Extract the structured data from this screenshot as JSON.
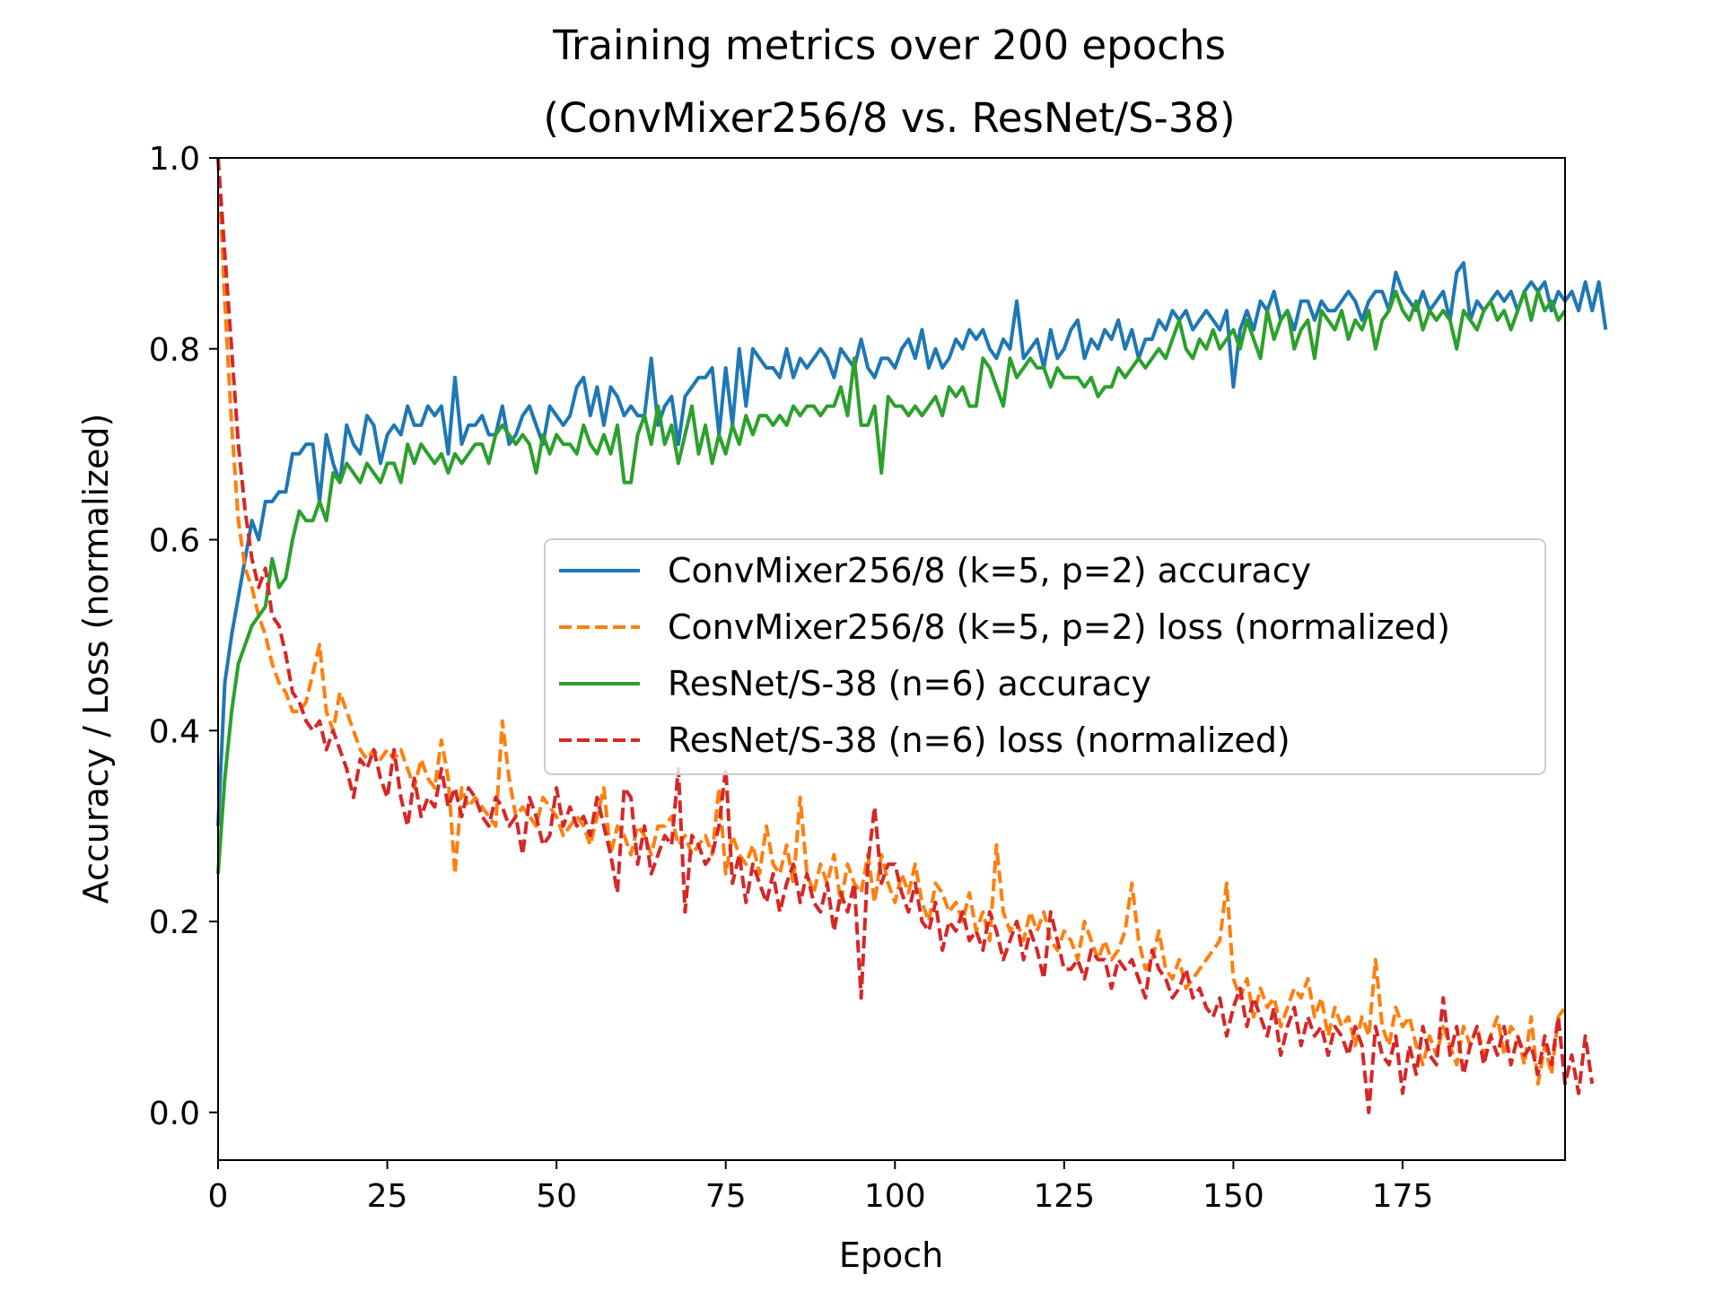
{
  "chart_data": {
    "type": "line",
    "title": "Training metrics over 200 epochs",
    "subtitle": "(ConvMixer256/8 vs. ResNet/S-38)",
    "xlabel": "Epoch",
    "ylabel": "Accuracy / Loss (normalized)",
    "xlim": [
      0,
      199
    ],
    "ylim": [
      -0.05,
      1.0
    ],
    "xticks": [
      0,
      25,
      50,
      75,
      100,
      125,
      150,
      175
    ],
    "yticks": [
      0.0,
      0.2,
      0.4,
      0.6,
      0.8,
      1.0
    ],
    "xtick_labels": [
      "0",
      "25",
      "50",
      "75",
      "100",
      "125",
      "150",
      "175"
    ],
    "ytick_labels": [
      "0.0",
      "0.2",
      "0.4",
      "0.6",
      "0.8",
      "1.0"
    ],
    "grid": false,
    "legend_position": "center-right",
    "x_values": "epochs 0..199 (one point per epoch)",
    "series": [
      {
        "name": "ConvMixer256/8 (k=5, p=2) accuracy",
        "color": "#1f77b4",
        "style": "solid",
        "values": [
          0.3,
          0.45,
          0.5,
          0.54,
          0.58,
          0.62,
          0.6,
          0.64,
          0.64,
          0.65,
          0.65,
          0.69,
          0.69,
          0.7,
          0.7,
          0.64,
          0.71,
          0.68,
          0.66,
          0.72,
          0.7,
          0.69,
          0.73,
          0.72,
          0.68,
          0.71,
          0.72,
          0.71,
          0.74,
          0.72,
          0.72,
          0.74,
          0.73,
          0.74,
          0.69,
          0.77,
          0.7,
          0.72,
          0.72,
          0.73,
          0.71,
          0.71,
          0.74,
          0.7,
          0.71,
          0.73,
          0.74,
          0.72,
          0.7,
          0.74,
          0.73,
          0.72,
          0.73,
          0.76,
          0.77,
          0.73,
          0.76,
          0.72,
          0.76,
          0.75,
          0.73,
          0.74,
          0.73,
          0.73,
          0.79,
          0.72,
          0.74,
          0.75,
          0.7,
          0.75,
          0.76,
          0.77,
          0.77,
          0.78,
          0.71,
          0.78,
          0.72,
          0.8,
          0.74,
          0.8,
          0.79,
          0.78,
          0.78,
          0.77,
          0.8,
          0.77,
          0.79,
          0.78,
          0.79,
          0.8,
          0.79,
          0.77,
          0.8,
          0.79,
          0.78,
          0.81,
          0.78,
          0.77,
          0.79,
          0.79,
          0.78,
          0.8,
          0.81,
          0.79,
          0.82,
          0.78,
          0.8,
          0.78,
          0.79,
          0.81,
          0.8,
          0.82,
          0.81,
          0.82,
          0.8,
          0.79,
          0.81,
          0.8,
          0.85,
          0.79,
          0.8,
          0.81,
          0.78,
          0.82,
          0.79,
          0.8,
          0.82,
          0.83,
          0.79,
          0.81,
          0.8,
          0.82,
          0.81,
          0.83,
          0.8,
          0.82,
          0.79,
          0.81,
          0.81,
          0.83,
          0.82,
          0.84,
          0.83,
          0.84,
          0.82,
          0.83,
          0.84,
          0.83,
          0.82,
          0.84,
          0.76,
          0.82,
          0.84,
          0.82,
          0.85,
          0.84,
          0.86,
          0.83,
          0.84,
          0.82,
          0.85,
          0.85,
          0.83,
          0.85,
          0.84,
          0.84,
          0.85,
          0.86,
          0.85,
          0.83,
          0.85,
          0.86,
          0.86,
          0.84,
          0.88,
          0.86,
          0.85,
          0.84,
          0.86,
          0.84,
          0.85,
          0.86,
          0.83,
          0.88,
          0.89,
          0.83,
          0.85,
          0.84,
          0.85,
          0.86,
          0.85,
          0.86,
          0.84,
          0.86,
          0.87,
          0.86,
          0.87,
          0.84,
          0.86,
          0.85,
          0.86,
          0.84,
          0.87,
          0.84,
          0.87,
          0.82
        ]
      },
      {
        "name": "ConvMixer256/8 (k=5, p=2) loss (normalized)",
        "color": "#ff7f0e",
        "style": "dashed",
        "values": [
          1.0,
          0.85,
          0.72,
          0.62,
          0.57,
          0.55,
          0.52,
          0.5,
          0.47,
          0.45,
          0.44,
          0.42,
          0.42,
          0.43,
          0.46,
          0.49,
          0.42,
          0.4,
          0.44,
          0.42,
          0.4,
          0.38,
          0.37,
          0.38,
          0.37,
          0.38,
          0.37,
          0.38,
          0.36,
          0.34,
          0.37,
          0.35,
          0.34,
          0.39,
          0.35,
          0.25,
          0.34,
          0.32,
          0.33,
          0.32,
          0.31,
          0.3,
          0.41,
          0.35,
          0.31,
          0.32,
          0.31,
          0.3,
          0.33,
          0.32,
          0.31,
          0.29,
          0.3,
          0.31,
          0.3,
          0.28,
          0.31,
          0.34,
          0.27,
          0.3,
          0.29,
          0.27,
          0.3,
          0.29,
          0.27,
          0.3,
          0.3,
          0.31,
          0.28,
          0.29,
          0.27,
          0.28,
          0.29,
          0.27,
          0.34,
          0.25,
          0.29,
          0.27,
          0.26,
          0.28,
          0.25,
          0.3,
          0.26,
          0.25,
          0.28,
          0.24,
          0.33,
          0.25,
          0.23,
          0.26,
          0.24,
          0.27,
          0.22,
          0.26,
          0.24,
          0.23,
          0.27,
          0.22,
          0.27,
          0.24,
          0.22,
          0.25,
          0.23,
          0.26,
          0.22,
          0.2,
          0.24,
          0.23,
          0.21,
          0.22,
          0.2,
          0.23,
          0.19,
          0.21,
          0.18,
          0.28,
          0.21,
          0.19,
          0.2,
          0.18,
          0.21,
          0.19,
          0.21,
          0.18,
          0.17,
          0.19,
          0.18,
          0.16,
          0.2,
          0.18,
          0.16,
          0.18,
          0.16,
          0.17,
          0.19,
          0.24,
          0.18,
          0.15,
          0.16,
          0.19,
          0.15,
          0.14,
          0.16,
          0.13,
          0.14,
          0.15,
          0.16,
          0.17,
          0.18,
          0.24,
          0.14,
          0.12,
          0.14,
          0.1,
          0.13,
          0.11,
          0.12,
          0.09,
          0.11,
          0.13,
          0.12,
          0.14,
          0.1,
          0.12,
          0.08,
          0.11,
          0.09,
          0.1,
          0.07,
          0.1,
          0.08,
          0.16,
          0.09,
          0.07,
          0.11,
          0.09,
          0.1,
          0.07,
          0.05,
          0.08,
          0.06,
          0.09,
          0.07,
          0.05,
          0.09,
          0.07,
          0.09,
          0.06,
          0.08,
          0.1,
          0.06,
          0.09,
          0.08,
          0.05,
          0.1,
          0.03,
          0.07,
          0.04,
          0.1,
          0.11
        ]
      },
      {
        "name": "ResNet/S-38 (n=6) accuracy",
        "color": "#2ca02c",
        "style": "solid",
        "values": [
          0.25,
          0.35,
          0.42,
          0.47,
          0.49,
          0.51,
          0.52,
          0.53,
          0.58,
          0.55,
          0.56,
          0.6,
          0.63,
          0.62,
          0.62,
          0.64,
          0.62,
          0.67,
          0.66,
          0.68,
          0.67,
          0.66,
          0.68,
          0.67,
          0.66,
          0.68,
          0.68,
          0.66,
          0.7,
          0.68,
          0.7,
          0.69,
          0.68,
          0.69,
          0.67,
          0.69,
          0.68,
          0.69,
          0.7,
          0.7,
          0.68,
          0.71,
          0.72,
          0.71,
          0.7,
          0.71,
          0.7,
          0.67,
          0.71,
          0.69,
          0.71,
          0.7,
          0.7,
          0.69,
          0.72,
          0.7,
          0.69,
          0.71,
          0.69,
          0.72,
          0.66,
          0.66,
          0.71,
          0.73,
          0.7,
          0.74,
          0.7,
          0.72,
          0.68,
          0.71,
          0.74,
          0.69,
          0.72,
          0.68,
          0.71,
          0.69,
          0.72,
          0.7,
          0.73,
          0.71,
          0.73,
          0.73,
          0.72,
          0.73,
          0.72,
          0.74,
          0.73,
          0.74,
          0.74,
          0.73,
          0.74,
          0.74,
          0.76,
          0.73,
          0.79,
          0.72,
          0.72,
          0.74,
          0.67,
          0.75,
          0.74,
          0.74,
          0.73,
          0.74,
          0.73,
          0.74,
          0.75,
          0.73,
          0.76,
          0.75,
          0.76,
          0.74,
          0.74,
          0.79,
          0.78,
          0.76,
          0.74,
          0.79,
          0.77,
          0.78,
          0.79,
          0.78,
          0.78,
          0.76,
          0.78,
          0.77,
          0.77,
          0.77,
          0.76,
          0.77,
          0.75,
          0.76,
          0.76,
          0.78,
          0.77,
          0.78,
          0.79,
          0.78,
          0.79,
          0.8,
          0.79,
          0.81,
          0.83,
          0.8,
          0.79,
          0.81,
          0.8,
          0.82,
          0.8,
          0.81,
          0.82,
          0.8,
          0.83,
          0.81,
          0.79,
          0.84,
          0.81,
          0.83,
          0.84,
          0.8,
          0.82,
          0.83,
          0.79,
          0.84,
          0.83,
          0.82,
          0.84,
          0.81,
          0.83,
          0.82,
          0.84,
          0.8,
          0.83,
          0.84,
          0.86,
          0.84,
          0.83,
          0.85,
          0.82,
          0.84,
          0.83,
          0.84,
          0.83,
          0.8,
          0.84,
          0.83,
          0.82,
          0.84,
          0.85,
          0.83,
          0.84,
          0.82,
          0.84,
          0.86,
          0.83,
          0.86,
          0.84,
          0.85,
          0.83,
          0.84
        ]
      },
      {
        "name": "ResNet/S-38 (n=6) loss (normalized)",
        "color": "#d62728",
        "style": "dashed",
        "values": [
          1.0,
          0.9,
          0.8,
          0.7,
          0.63,
          0.58,
          0.55,
          0.57,
          0.52,
          0.51,
          0.48,
          0.44,
          0.43,
          0.41,
          0.4,
          0.41,
          0.38,
          0.4,
          0.38,
          0.36,
          0.33,
          0.37,
          0.36,
          0.38,
          0.35,
          0.33,
          0.38,
          0.33,
          0.3,
          0.35,
          0.31,
          0.33,
          0.32,
          0.36,
          0.32,
          0.34,
          0.31,
          0.34,
          0.33,
          0.31,
          0.3,
          0.33,
          0.32,
          0.3,
          0.31,
          0.27,
          0.33,
          0.31,
          0.28,
          0.29,
          0.34,
          0.3,
          0.32,
          0.3,
          0.31,
          0.29,
          0.33,
          0.3,
          0.27,
          0.23,
          0.34,
          0.33,
          0.26,
          0.3,
          0.25,
          0.27,
          0.29,
          0.28,
          0.36,
          0.21,
          0.29,
          0.28,
          0.26,
          0.27,
          0.3,
          0.36,
          0.24,
          0.27,
          0.22,
          0.26,
          0.24,
          0.22,
          0.25,
          0.21,
          0.24,
          0.26,
          0.22,
          0.25,
          0.22,
          0.21,
          0.24,
          0.19,
          0.23,
          0.21,
          0.24,
          0.12,
          0.26,
          0.32,
          0.24,
          0.26,
          0.26,
          0.23,
          0.21,
          0.24,
          0.2,
          0.19,
          0.22,
          0.17,
          0.2,
          0.19,
          0.21,
          0.18,
          0.19,
          0.17,
          0.21,
          0.19,
          0.16,
          0.18,
          0.2,
          0.16,
          0.19,
          0.17,
          0.14,
          0.21,
          0.18,
          0.15,
          0.15,
          0.16,
          0.14,
          0.17,
          0.16,
          0.16,
          0.13,
          0.16,
          0.15,
          0.16,
          0.14,
          0.12,
          0.17,
          0.15,
          0.14,
          0.12,
          0.13,
          0.15,
          0.12,
          0.13,
          0.11,
          0.1,
          0.12,
          0.08,
          0.11,
          0.13,
          0.09,
          0.12,
          0.1,
          0.08,
          0.11,
          0.06,
          0.09,
          0.11,
          0.07,
          0.1,
          0.08,
          0.09,
          0.06,
          0.09,
          0.08,
          0.06,
          0.09,
          0.07,
          0.0,
          0.09,
          0.06,
          0.05,
          0.08,
          0.02,
          0.07,
          0.04,
          0.09,
          0.06,
          0.05,
          0.12,
          0.06,
          0.09,
          0.04,
          0.07,
          0.09,
          0.05,
          0.08,
          0.06,
          0.09,
          0.05,
          0.08,
          0.06,
          0.07,
          0.04,
          0.08,
          0.05,
          0.1,
          0.03,
          0.06,
          0.02,
          0.08,
          0.03
        ]
      }
    ]
  }
}
